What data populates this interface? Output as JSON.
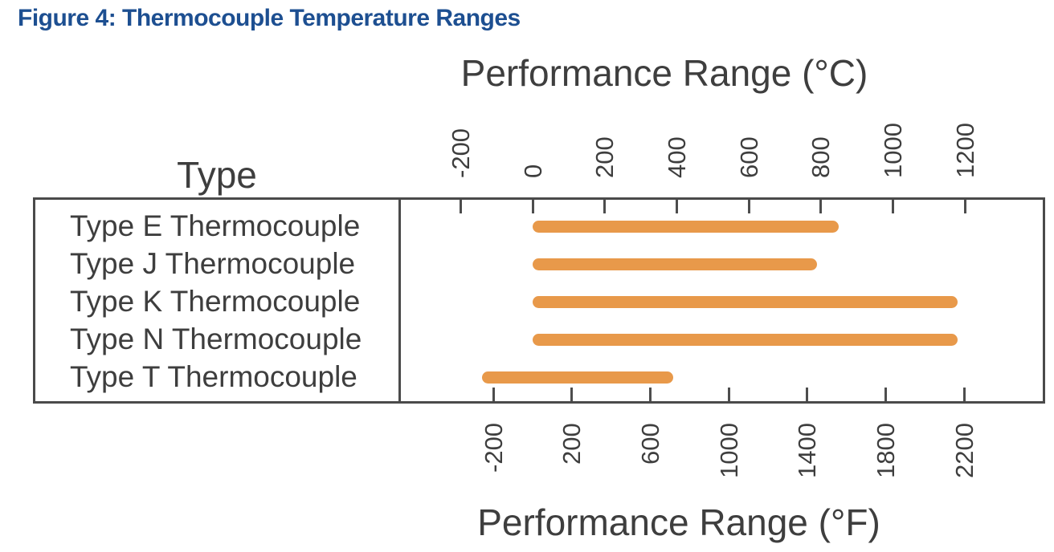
{
  "figure_title": "Figure 4: Thermocouple Temperature Ranges",
  "colors": {
    "title_blue": "#1D4F91",
    "bar_orange": "#E8994A",
    "frame_gray": "#4A4A4A",
    "text_gray": "#3E3E3E"
  },
  "chart_data": {
    "type": "bar",
    "subtype": "horizontal-range-bars",
    "row_header": "Type",
    "categories": [
      "Type E Thermocouple",
      "Type J Thermocouple",
      "Type K Thermocouple",
      "Type N Thermocouple",
      "Type T Thermocouple"
    ],
    "series": [
      {
        "name": "Performance range (°C), estimated from axis",
        "unit": "°C",
        "ranges_c": [
          [
            0,
            850
          ],
          [
            0,
            790
          ],
          [
            0,
            1180
          ],
          [
            0,
            1180
          ],
          [
            -140,
            390
          ]
        ]
      }
    ],
    "axis_top": {
      "label": "Performance Range (°C)",
      "unit": "°C",
      "ticks": [
        -200,
        0,
        200,
        400,
        600,
        800,
        1000,
        1200
      ],
      "xlim_c": [
        -370,
        1420
      ]
    },
    "axis_bottom": {
      "label": "Performance Range (°F)",
      "unit": "°F",
      "ticks": [
        -200,
        200,
        600,
        1000,
        1400,
        1800,
        2200
      ]
    },
    "legend": "none",
    "grid": "off",
    "bar_color": "#E8994A"
  }
}
